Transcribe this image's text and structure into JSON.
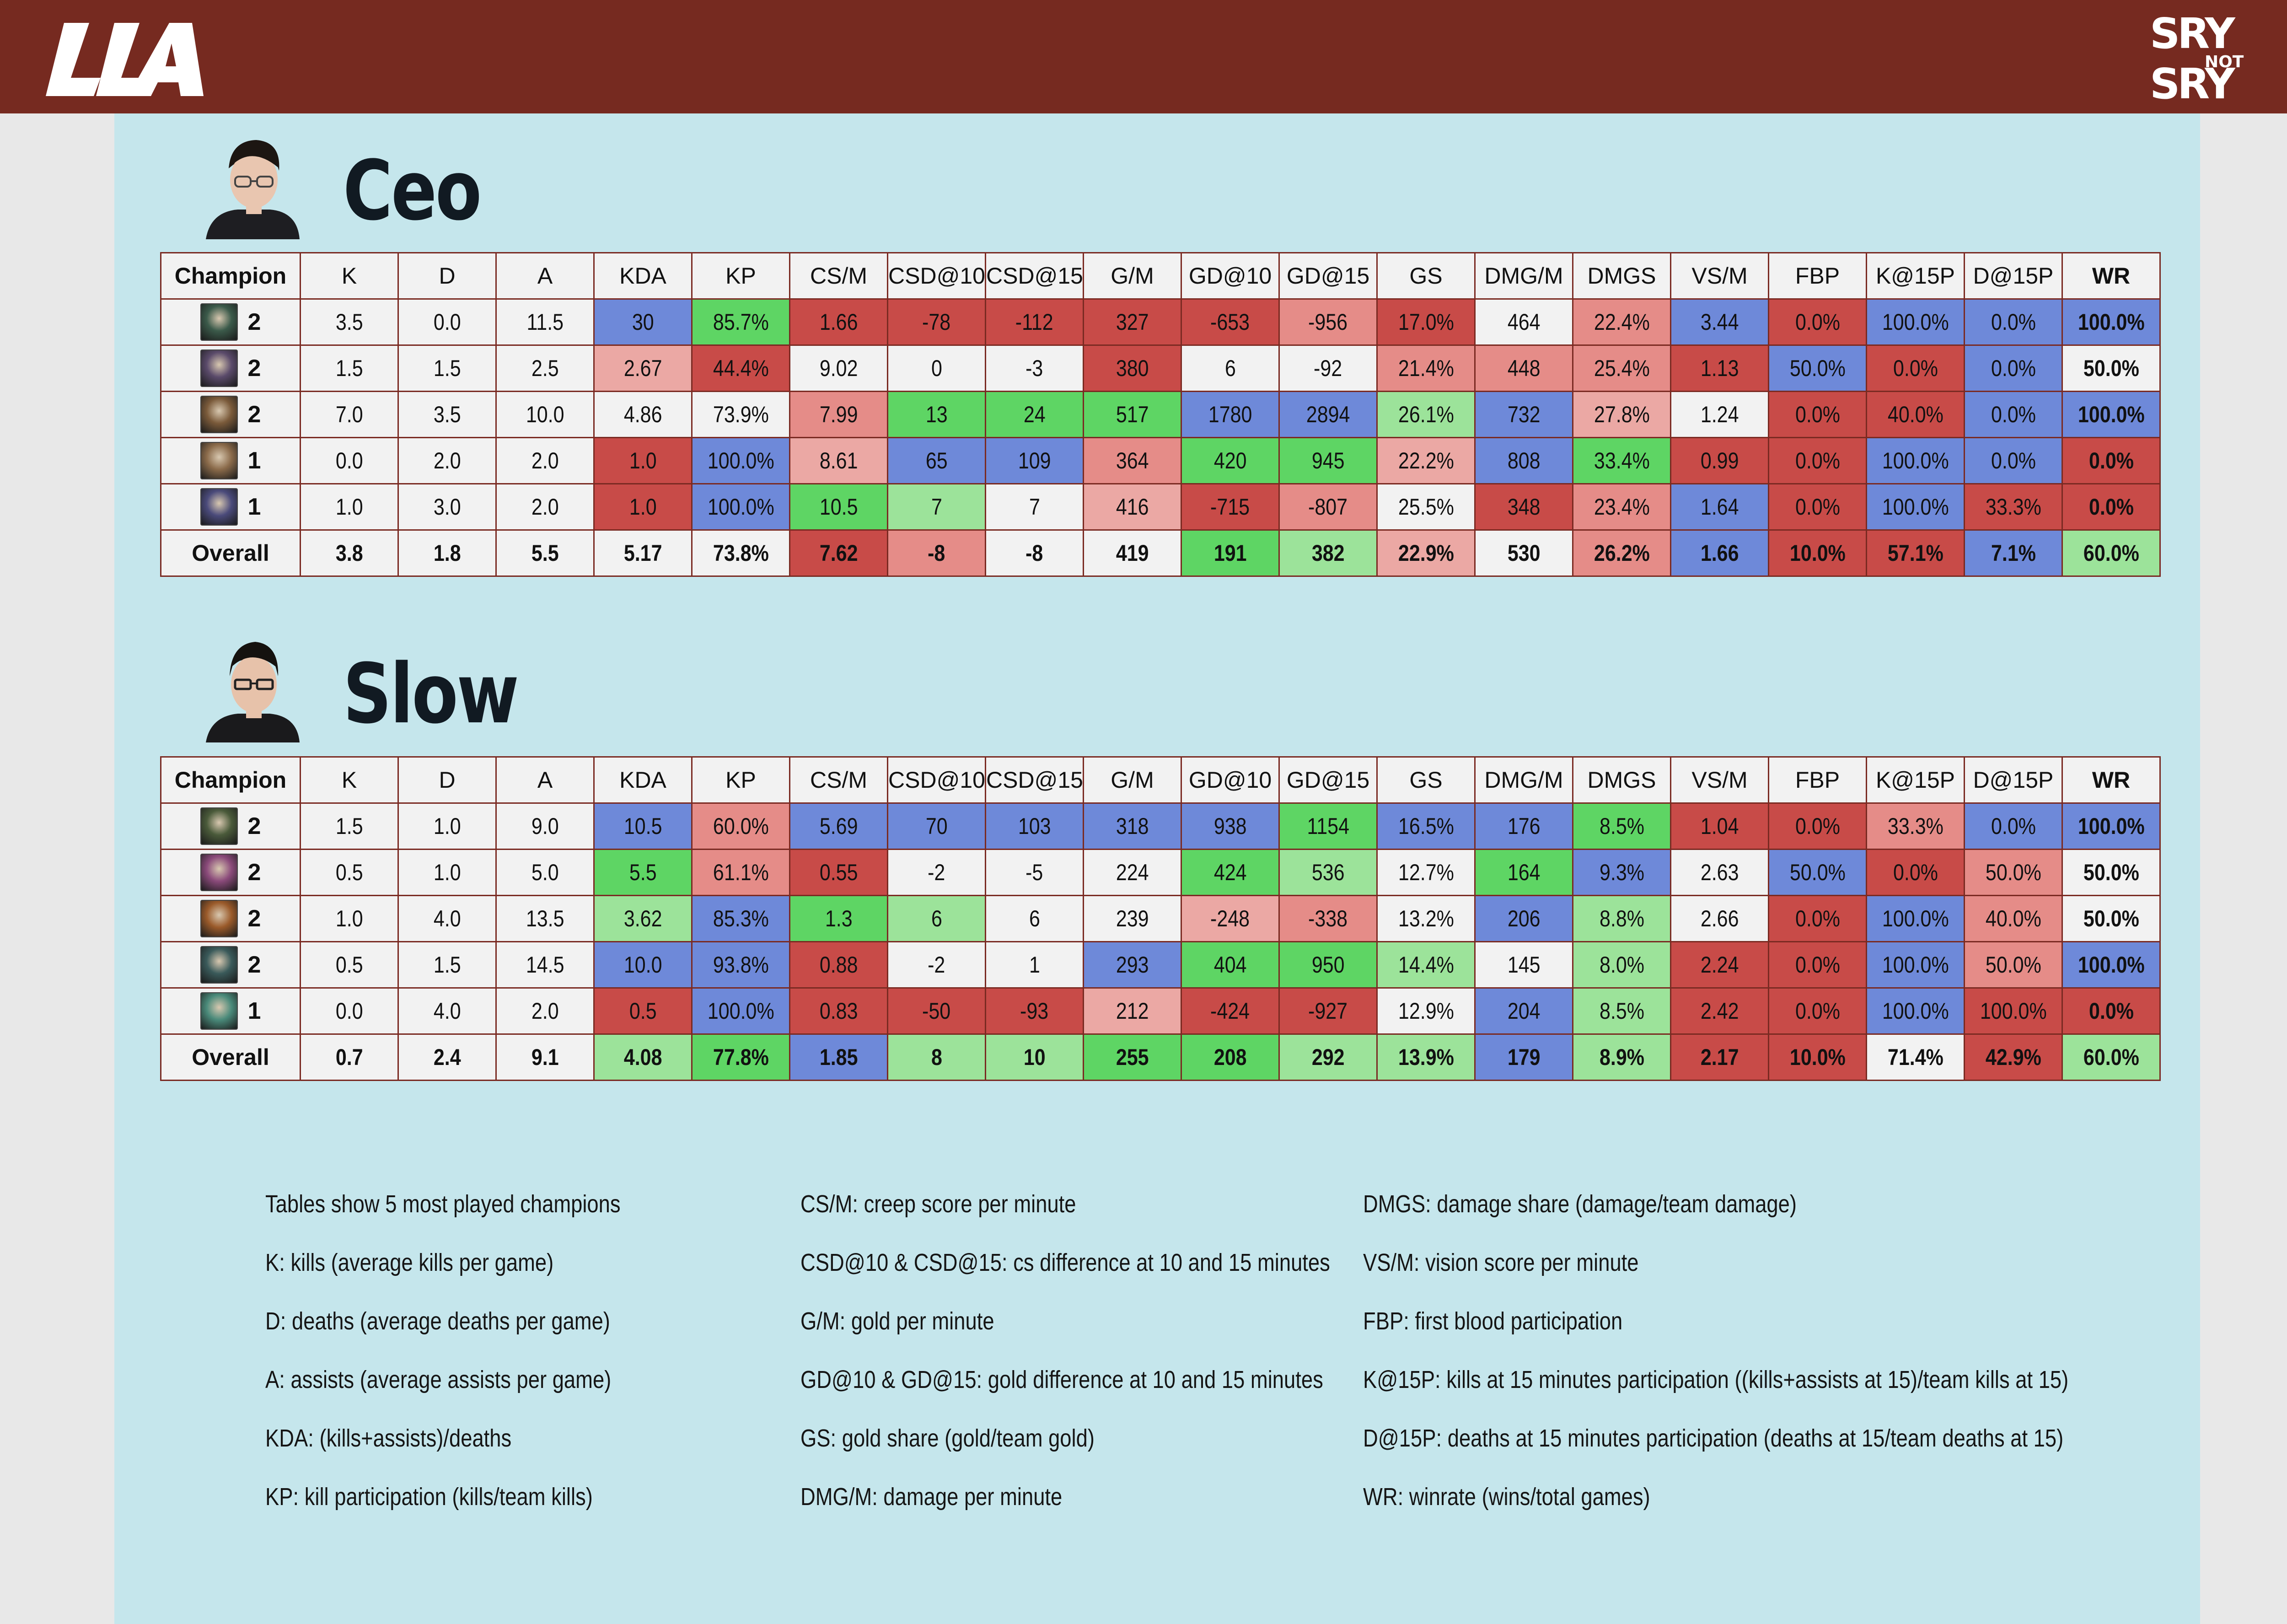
{
  "header": {
    "brand_left": "LLA",
    "brand_right_top": "SRY",
    "brand_right_mid": "NOT",
    "brand_right_bottom": "SRY"
  },
  "columns": [
    "Champion",
    "K",
    "D",
    "A",
    "KDA",
    "KP",
    "CS/M",
    "CSD@10",
    "CSD@15",
    "G/M",
    "GD@10",
    "GD@15",
    "GS",
    "DMG/M",
    "DMGS",
    "VS/M",
    "FBP",
    "K@15P",
    "D@15P",
    "WR"
  ],
  "colors": {
    "blue": "#6e89d9",
    "green": "#5ed564",
    "light_green": "#9ce39a",
    "red": "#c84b48",
    "light_red": "#e58c88",
    "pink": "#eba8a4",
    "white": "#f2f2f2",
    "header_bg": "#762a20",
    "panel_bg": "#c5e6ec"
  },
  "players": [
    {
      "name": "Ceo",
      "rows": [
        {
          "games": "2",
          "icon": "champion-icon-1",
          "icon_color": "#3b5a4a",
          "vals": [
            "3.5",
            "0.0",
            "11.5",
            "30",
            "85.7%",
            "1.66",
            "-78",
            "-112",
            "327",
            "-653",
            "-956",
            "17.0%",
            "464",
            "22.4%",
            "3.44",
            "0.0%",
            "100.0%",
            "0.0%",
            "100.0%"
          ],
          "cls": [
            "w",
            "w",
            "w",
            "b",
            "g",
            "r",
            "r",
            "r",
            "r",
            "r",
            "lr",
            "r",
            "w",
            "lr",
            "b",
            "r",
            "b",
            "b",
            "b"
          ]
        },
        {
          "games": "2",
          "icon": "champion-icon-2",
          "icon_color": "#5a4a6a",
          "vals": [
            "1.5",
            "1.5",
            "2.5",
            "2.67",
            "44.4%",
            "9.02",
            "0",
            "-3",
            "380",
            "6",
            "-92",
            "21.4%",
            "448",
            "25.4%",
            "1.13",
            "50.0%",
            "0.0%",
            "0.0%",
            "50.0%"
          ],
          "cls": [
            "w",
            "w",
            "w",
            "pk",
            "r",
            "w",
            "w",
            "w",
            "r",
            "w",
            "w",
            "lr",
            "lr",
            "lr",
            "r",
            "b",
            "r",
            "b",
            "w"
          ]
        },
        {
          "games": "2",
          "icon": "champion-icon-3",
          "icon_color": "#7a5a3a",
          "vals": [
            "7.0",
            "3.5",
            "10.0",
            "4.86",
            "73.9%",
            "7.99",
            "13",
            "24",
            "517",
            "1780",
            "2894",
            "26.1%",
            "732",
            "27.8%",
            "1.24",
            "0.0%",
            "40.0%",
            "0.0%",
            "100.0%"
          ],
          "cls": [
            "w",
            "w",
            "w",
            "w",
            "w",
            "lr",
            "g",
            "g",
            "g",
            "b",
            "b",
            "lg",
            "b",
            "pk",
            "w",
            "r",
            "r",
            "b",
            "b"
          ]
        },
        {
          "games": "1",
          "icon": "champion-icon-4",
          "icon_color": "#8a6a4a",
          "vals": [
            "0.0",
            "2.0",
            "2.0",
            "1.0",
            "100.0%",
            "8.61",
            "65",
            "109",
            "364",
            "420",
            "945",
            "22.2%",
            "808",
            "33.4%",
            "0.99",
            "0.0%",
            "100.0%",
            "0.0%",
            "0.0%"
          ],
          "cls": [
            "w",
            "w",
            "w",
            "r",
            "b",
            "pk",
            "b",
            "b",
            "lr",
            "g",
            "g",
            "pk",
            "b",
            "g",
            "r",
            "r",
            "b",
            "b",
            "r"
          ]
        },
        {
          "games": "1",
          "icon": "champion-icon-5",
          "icon_color": "#4a4a7a",
          "vals": [
            "1.0",
            "3.0",
            "2.0",
            "1.0",
            "100.0%",
            "10.5",
            "7",
            "7",
            "416",
            "-715",
            "-807",
            "25.5%",
            "348",
            "23.4%",
            "1.64",
            "0.0%",
            "100.0%",
            "33.3%",
            "0.0%"
          ],
          "cls": [
            "w",
            "w",
            "w",
            "r",
            "b",
            "g",
            "lg",
            "w",
            "pk",
            "r",
            "lr",
            "w",
            "r",
            "lr",
            "b",
            "r",
            "b",
            "r",
            "r"
          ]
        }
      ],
      "overall": {
        "label": "Overall",
        "vals": [
          "3.8",
          "1.8",
          "5.5",
          "5.17",
          "73.8%",
          "7.62",
          "-8",
          "-8",
          "419",
          "191",
          "382",
          "22.9%",
          "530",
          "26.2%",
          "1.66",
          "10.0%",
          "57.1%",
          "7.1%",
          "60.0%"
        ],
        "cls": [
          "w",
          "w",
          "w",
          "w",
          "w",
          "r",
          "lr",
          "w",
          "w",
          "g",
          "lg",
          "pk",
          "w",
          "lr",
          "b",
          "r",
          "r",
          "b",
          "lg"
        ]
      }
    },
    {
      "name": "Slow",
      "rows": [
        {
          "games": "2",
          "icon": "champion-icon-6",
          "icon_color": "#4a5a3a",
          "vals": [
            "1.5",
            "1.0",
            "9.0",
            "10.5",
            "60.0%",
            "5.69",
            "70",
            "103",
            "318",
            "938",
            "1154",
            "16.5%",
            "176",
            "8.5%",
            "1.04",
            "0.0%",
            "33.3%",
            "0.0%",
            "100.0%"
          ],
          "cls": [
            "w",
            "w",
            "w",
            "b",
            "lr",
            "b",
            "b",
            "b",
            "b",
            "b",
            "g",
            "b",
            "b",
            "g",
            "r",
            "r",
            "lr",
            "b",
            "b"
          ]
        },
        {
          "games": "2",
          "icon": "champion-icon-7",
          "icon_color": "#8a4a7a",
          "vals": [
            "0.5",
            "1.0",
            "5.0",
            "5.5",
            "61.1%",
            "0.55",
            "-2",
            "-5",
            "224",
            "424",
            "536",
            "12.7%",
            "164",
            "9.3%",
            "2.63",
            "50.0%",
            "0.0%",
            "50.0%",
            "50.0%"
          ],
          "cls": [
            "w",
            "w",
            "w",
            "g",
            "lr",
            "r",
            "w",
            "w",
            "w",
            "g",
            "lg",
            "w",
            "g",
            "b",
            "w",
            "b",
            "r",
            "lr",
            "w"
          ]
        },
        {
          "games": "2",
          "icon": "champion-icon-8",
          "icon_color": "#9a5a2a",
          "vals": [
            "1.0",
            "4.0",
            "13.5",
            "3.62",
            "85.3%",
            "1.3",
            "6",
            "6",
            "239",
            "-248",
            "-338",
            "13.2%",
            "206",
            "8.8%",
            "2.66",
            "0.0%",
            "100.0%",
            "40.0%",
            "50.0%"
          ],
          "cls": [
            "w",
            "w",
            "w",
            "lg",
            "b",
            "g",
            "lg",
            "w",
            "w",
            "pk",
            "lr",
            "w",
            "b",
            "lg",
            "w",
            "r",
            "b",
            "lr",
            "w"
          ]
        },
        {
          "games": "2",
          "icon": "champion-icon-9",
          "icon_color": "#3a5a5a",
          "vals": [
            "0.5",
            "1.5",
            "14.5",
            "10.0",
            "93.8%",
            "0.88",
            "-2",
            "1",
            "293",
            "404",
            "950",
            "14.4%",
            "145",
            "8.0%",
            "2.24",
            "0.0%",
            "100.0%",
            "50.0%",
            "100.0%"
          ],
          "cls": [
            "w",
            "w",
            "w",
            "b",
            "b",
            "r",
            "w",
            "w",
            "b",
            "g",
            "g",
            "lg",
            "w",
            "lg",
            "r",
            "r",
            "b",
            "lr",
            "b"
          ]
        },
        {
          "games": "1",
          "icon": "champion-icon-10",
          "icon_color": "#4a8a7a",
          "vals": [
            "0.0",
            "4.0",
            "2.0",
            "0.5",
            "100.0%",
            "0.83",
            "-50",
            "-93",
            "212",
            "-424",
            "-927",
            "12.9%",
            "204",
            "8.5%",
            "2.42",
            "0.0%",
            "100.0%",
            "100.0%",
            "0.0%"
          ],
          "cls": [
            "w",
            "w",
            "w",
            "r",
            "b",
            "r",
            "r",
            "r",
            "pk",
            "r",
            "r",
            "w",
            "b",
            "lg",
            "r",
            "r",
            "b",
            "r",
            "r"
          ]
        }
      ],
      "overall": {
        "label": "Overall",
        "vals": [
          "0.7",
          "2.4",
          "9.1",
          "4.08",
          "77.8%",
          "1.85",
          "8",
          "10",
          "255",
          "208",
          "292",
          "13.9%",
          "179",
          "8.9%",
          "2.17",
          "10.0%",
          "71.4%",
          "42.9%",
          "60.0%"
        ],
        "cls": [
          "w",
          "w",
          "w",
          "lg",
          "g",
          "b",
          "lg",
          "lg",
          "g",
          "g",
          "lg",
          "lg",
          "b",
          "lg",
          "r",
          "r",
          "w",
          "r",
          "lg"
        ]
      }
    }
  ],
  "legend": [
    [
      "Tables show 5 most played champions",
      "K:  kills (average kills per game)",
      "D:  deaths (average deaths per game)",
      "A:  assists (average assists per game)",
      "KDA:  (kills+assists)/deaths",
      "KP:  kill participation (kills/team kills)"
    ],
    [
      "CS/M:  creep score per minute",
      "CSD@10 & CSD@15:  cs difference at 10 and 15 minutes",
      "G/M:  gold per minute",
      "GD@10 & GD@15:  gold difference at 10 and 15 minutes",
      "GS:  gold share (gold/team gold)",
      "DMG/M:  damage per minute"
    ],
    [
      "DMGS:  damage share (damage/team damage)",
      "VS/M:  vision score per minute",
      "FBP:  first blood participation",
      "K@15P:  kills at 15 minutes participation ((kills+assists at 15)/team kills at 15)",
      "D@15P:  deaths at 15 minutes participation (deaths at 15/team deaths at 15)",
      "WR:  winrate (wins/total games)"
    ]
  ]
}
